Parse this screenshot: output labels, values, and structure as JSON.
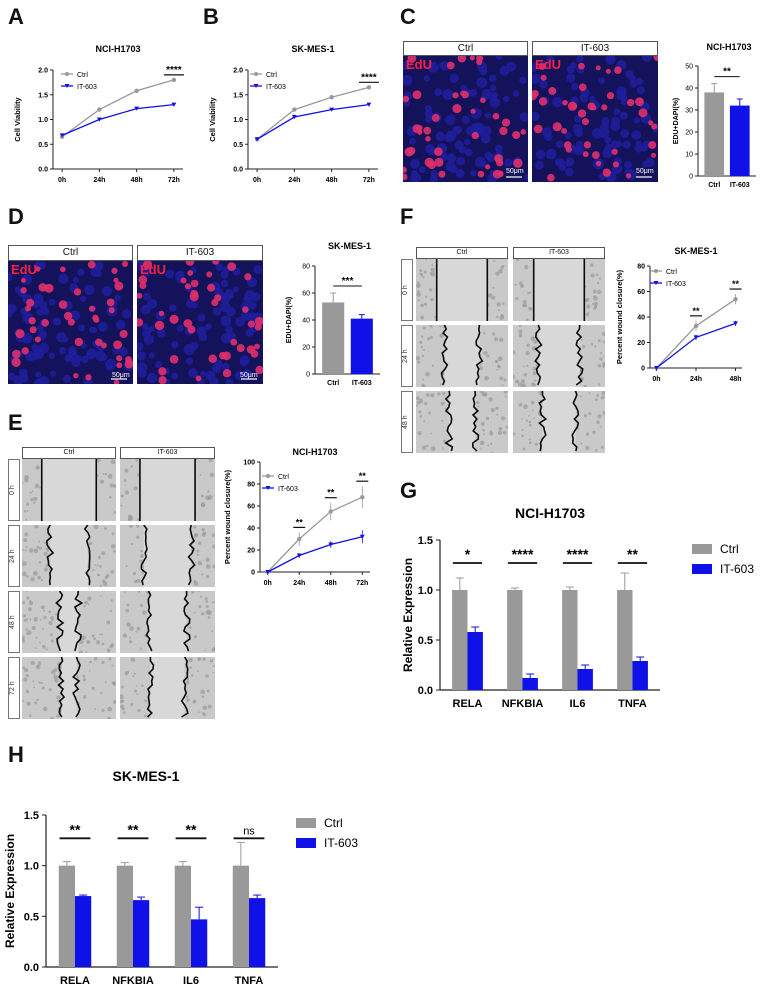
{
  "panel_labels": [
    "A",
    "B",
    "C",
    "D",
    "E",
    "F",
    "G",
    "H"
  ],
  "colors": {
    "ctrl": "#999999",
    "it603": "#1010E8",
    "edu_red": "#FF2040",
    "nucleus_blue": "#1E1E9C"
  },
  "charts": {
    "A": {
      "type": "line",
      "title": "NCI-H1703",
      "ylabel": "Cell Viability",
      "categories": [
        "0h",
        "24h",
        "48h",
        "72h"
      ],
      "yticks": [
        "0.0",
        "0.5",
        "1.0",
        "1.5",
        "2.0"
      ],
      "ylim": [
        0,
        2.0
      ],
      "series": [
        {
          "name": "Ctrl",
          "values": [
            0.65,
            1.2,
            1.58,
            1.8
          ]
        },
        {
          "name": "IT-603",
          "values": [
            0.68,
            1.0,
            1.22,
            1.3
          ]
        }
      ],
      "annotations": [
        {
          "cat": 3,
          "text": "****"
        }
      ]
    },
    "B": {
      "type": "line",
      "title": "SK-MES-1",
      "ylabel": "Cell Viability",
      "categories": [
        "0h",
        "24h",
        "48h",
        "72h"
      ],
      "yticks": [
        "0.0",
        "0.5",
        "1.0",
        "1.5",
        "2.0"
      ],
      "ylim": [
        0,
        2.0
      ],
      "series": [
        {
          "name": "Ctrl",
          "values": [
            0.6,
            1.2,
            1.45,
            1.65
          ]
        },
        {
          "name": "IT-603",
          "values": [
            0.6,
            1.05,
            1.2,
            1.3
          ]
        }
      ],
      "annotations": [
        {
          "cat": 3,
          "text": "****"
        }
      ]
    },
    "C": {
      "type": "bar",
      "title": "NCI-H1703",
      "ylabel": "EDU+DAPI(%)",
      "categories": [
        "Ctrl",
        "IT-603"
      ],
      "yticks": [
        "0",
        "10",
        "20",
        "30",
        "40",
        "50"
      ],
      "ylim": [
        0,
        50
      ],
      "values": [
        38,
        32
      ],
      "errors": [
        4,
        3
      ],
      "sig": "**"
    },
    "D": {
      "type": "bar",
      "title": "SK-MES-1",
      "ylabel": "EDU+DAPI(%)",
      "categories": [
        "Ctrl",
        "IT-603"
      ],
      "yticks": [
        "0",
        "20",
        "40",
        "60",
        "80"
      ],
      "ylim": [
        0,
        80
      ],
      "values": [
        53,
        41
      ],
      "errors": [
        7,
        3
      ],
      "sig": "***"
    },
    "E": {
      "type": "line",
      "title": "NCI-H1703",
      "ylabel": "Percent wound closure(%)",
      "categories": [
        "0h",
        "24h",
        "48h",
        "72h"
      ],
      "yticks": [
        "0",
        "20",
        "40",
        "60",
        "80",
        "100"
      ],
      "ylim": [
        0,
        100
      ],
      "series": [
        {
          "name": "Ctrl",
          "values": [
            0,
            30,
            55,
            68
          ],
          "errors": [
            0,
            6,
            8,
            10
          ]
        },
        {
          "name": "IT-603",
          "values": [
            0,
            15,
            25,
            32
          ],
          "errors": [
            0,
            2,
            3,
            6
          ]
        }
      ],
      "annotations": [
        {
          "cat": 1,
          "text": "**"
        },
        {
          "cat": 2,
          "text": "**"
        },
        {
          "cat": 3,
          "text": "**"
        }
      ]
    },
    "F": {
      "type": "line",
      "title": "SK-MES-1",
      "ylabel": "Percent wound closure(%)",
      "categories": [
        "0h",
        "24h",
        "48h"
      ],
      "yticks": [
        "0",
        "20",
        "40",
        "60",
        "80"
      ],
      "ylim": [
        0,
        80
      ],
      "series": [
        {
          "name": "Ctrl",
          "values": [
            0,
            33,
            54
          ],
          "errors": [
            0,
            4,
            4
          ]
        },
        {
          "name": "IT-603",
          "values": [
            0,
            24,
            35
          ],
          "errors": [
            0,
            2,
            2
          ]
        }
      ],
      "annotations": [
        {
          "cat": 1,
          "text": "**"
        },
        {
          "cat": 2,
          "text": "**"
        }
      ]
    },
    "G": {
      "type": "bar",
      "title": "NCI-H1703",
      "ylabel": "Relative Expression",
      "categories": [
        "RELA",
        "NFKBIA",
        "IL6",
        "TNFA"
      ],
      "yticks": [
        "0.0",
        "0.5",
        "1.0",
        "1.5"
      ],
      "ylim": [
        0,
        1.5
      ],
      "series": [
        {
          "name": "Ctrl",
          "values": [
            1.0,
            1.0,
            1.0,
            1.0
          ],
          "errors": [
            0.12,
            0.02,
            0.03,
            0.17
          ]
        },
        {
          "name": "IT-603",
          "values": [
            0.58,
            0.12,
            0.21,
            0.29
          ],
          "errors": [
            0.05,
            0.04,
            0.04,
            0.04
          ]
        }
      ],
      "sig": [
        "*",
        "****",
        "****",
        "**"
      ]
    },
    "H": {
      "type": "bar",
      "title": "SK-MES-1",
      "ylabel": "Relative Expression",
      "categories": [
        "RELA",
        "NFKBIA",
        "IL6",
        "TNFA"
      ],
      "yticks": [
        "0.0",
        "0.5",
        "1.0",
        "1.5"
      ],
      "ylim": [
        0,
        1.5
      ],
      "series": [
        {
          "name": "Ctrl",
          "values": [
            1.0,
            1.0,
            1.0,
            1.0
          ],
          "errors": [
            0.04,
            0.03,
            0.04,
            0.23
          ]
        },
        {
          "name": "IT-603",
          "values": [
            0.7,
            0.66,
            0.47,
            0.68
          ],
          "errors": [
            0.01,
            0.03,
            0.12,
            0.03
          ]
        }
      ],
      "sig": [
        "**",
        "**",
        "**",
        "ns"
      ]
    }
  },
  "micrographs": {
    "conditions": [
      "Ctrl",
      "IT-603"
    ],
    "edu_label": "EdU",
    "scale_bar": "50μm",
    "timepoints_e": [
      "0 h",
      "24 h",
      "48 h",
      "72 h"
    ],
    "timepoints_f": [
      "0 h",
      "24 h",
      "48 h"
    ]
  }
}
